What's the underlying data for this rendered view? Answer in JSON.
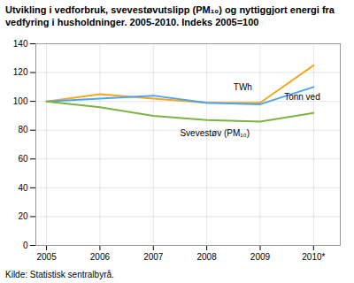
{
  "chart_data": {
    "type": "line",
    "title": "Utvikling i vedforbruk, svevestøvutslipp (PM₁₀) og nyttiggjort energi fra vedfyring i husholdninger. 2005-2010. Indeks 2005=100",
    "source": "Kilde: Statistisk sentralbyrå.",
    "x": [
      2005,
      2006,
      2007,
      2008,
      2009,
      2010
    ],
    "series": [
      {
        "name": "TWh",
        "color": "#f5a623",
        "values": [
          100,
          105,
          102,
          99,
          99,
          125
        ]
      },
      {
        "name": "Tonn ved",
        "color": "#4da6e8",
        "values": [
          100,
          102,
          104,
          99,
          98,
          110
        ]
      },
      {
        "name": "Svevestøv (PM₁₀)",
        "color": "#7cb342",
        "values": [
          100,
          96,
          90,
          87,
          86,
          92
        ]
      }
    ],
    "annotations": [
      {
        "text": "TWh",
        "x": 2008.5,
        "y": 108
      },
      {
        "text": "Tonn ved",
        "x": 2009.45,
        "y": 101
      },
      {
        "text": "Svevestøv (PM₁₀)",
        "x": 2007.5,
        "y": 76
      }
    ],
    "xlim": [
      2004.8,
      2010.5
    ],
    "xticks": [
      2005,
      2006,
      2007,
      2008,
      2009,
      {
        "value": 2010,
        "label": "2010*"
      }
    ],
    "ylim": [
      0,
      140
    ],
    "yticks": [
      0,
      20,
      40,
      60,
      80,
      100,
      120,
      140
    ],
    "grid": true
  }
}
